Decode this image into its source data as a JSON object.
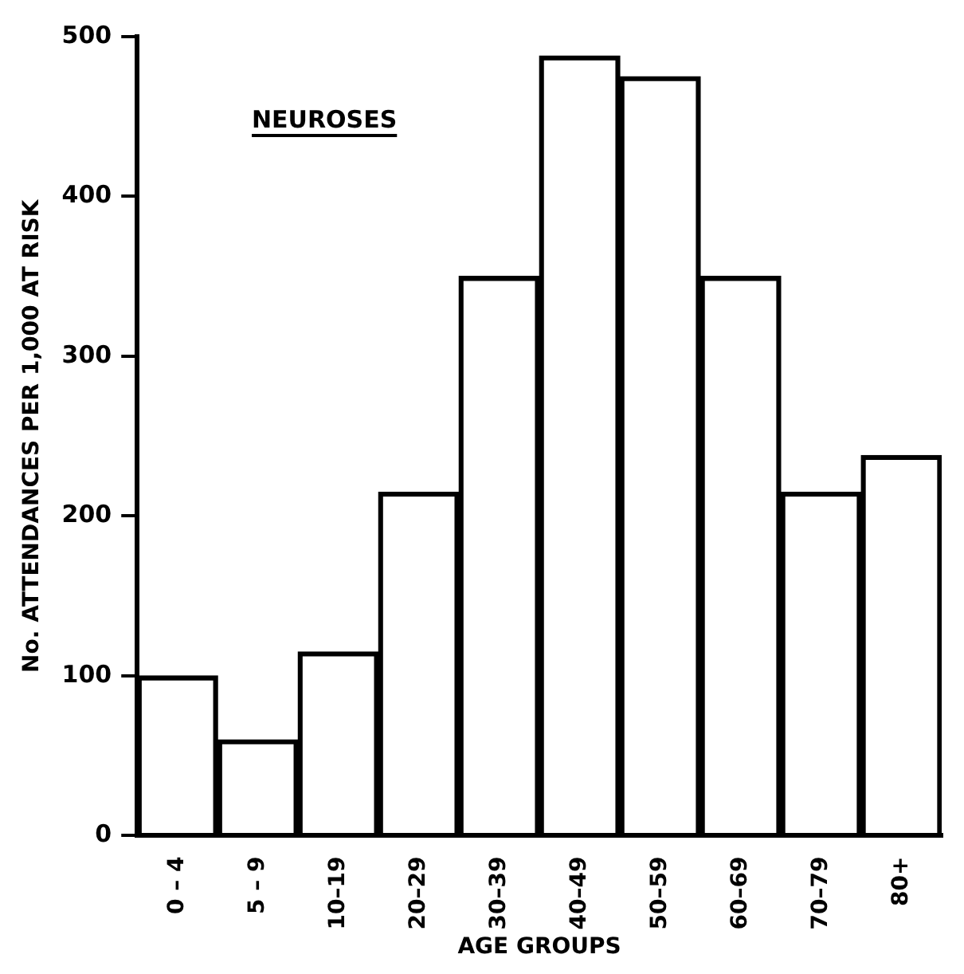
{
  "chart_data": {
    "type": "bar",
    "categories": [
      "0 – 4",
      "5 – 9",
      "10–19",
      "20–29",
      "30–39",
      "40–49",
      "50–59",
      "60–69",
      "70–79",
      "80+"
    ],
    "values": [
      100,
      60,
      115,
      215,
      350,
      488,
      475,
      350,
      215,
      238
    ],
    "color": "#000000",
    "xlabel": "AGE GROUPS",
    "ylabel": "No. ATTENDANCES PER 1,000 AT RISK",
    "annotations": [
      "NEUROSES"
    ],
    "ylim": [
      0,
      500
    ],
    "yticks": [
      0,
      100,
      200,
      300,
      400,
      500
    ],
    "grid": false,
    "legend": false
  }
}
